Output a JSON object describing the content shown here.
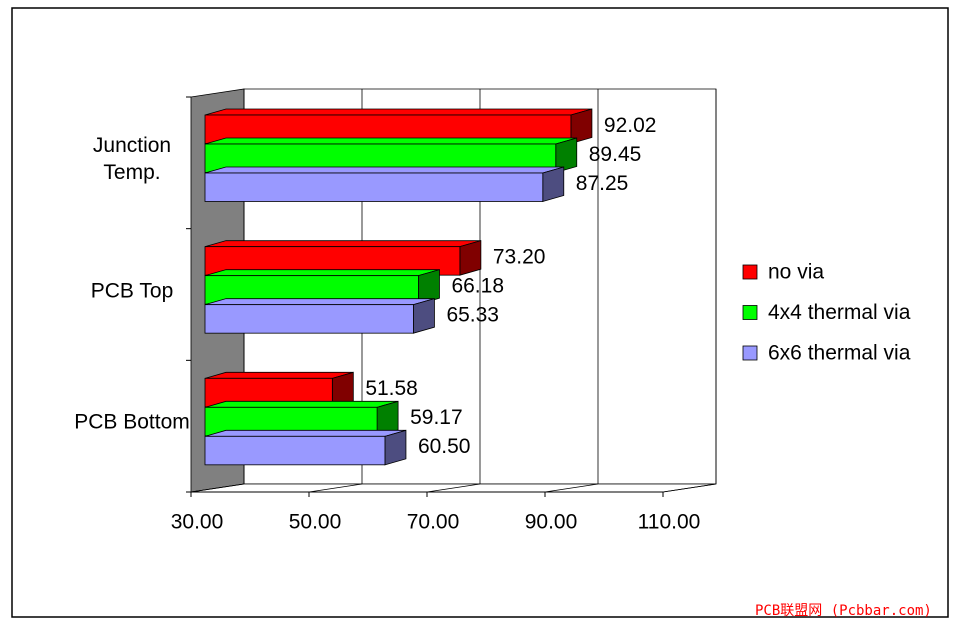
{
  "chart_data": {
    "type": "bar3d",
    "orientation": "horizontal",
    "categories": [
      "Junction\nTemp.",
      "PCB Top",
      "PCB Bottom"
    ],
    "series": [
      {
        "name": "no via",
        "color": "#ff0000",
        "values": [
          92.02,
          73.2,
          51.58
        ],
        "value_labels": [
          "92.02",
          "73.20",
          "51.58"
        ]
      },
      {
        "name": "4x4 thermal via",
        "color": "#00ff00",
        "values": [
          89.45,
          66.18,
          59.17
        ],
        "value_labels": [
          "89.45",
          "66.18",
          "59.17"
        ]
      },
      {
        "name": "6x6 thermal via",
        "color": "#9999ff",
        "values": [
          87.25,
          65.33,
          60.5
        ],
        "value_labels": [
          "87.25",
          "65.33",
          "60.50"
        ]
      }
    ],
    "xlim": [
      30,
      110
    ],
    "xticks": [
      {
        "value": 30,
        "label": "30.00"
      },
      {
        "value": 50,
        "label": "50.00"
      },
      {
        "value": 70,
        "label": "70.00"
      },
      {
        "value": 90,
        "label": "90.00"
      },
      {
        "value": 110,
        "label": "110.00"
      }
    ],
    "grid": true,
    "legend": "right",
    "watermark": "PCB联盟网 (Pcbbar.com)"
  }
}
